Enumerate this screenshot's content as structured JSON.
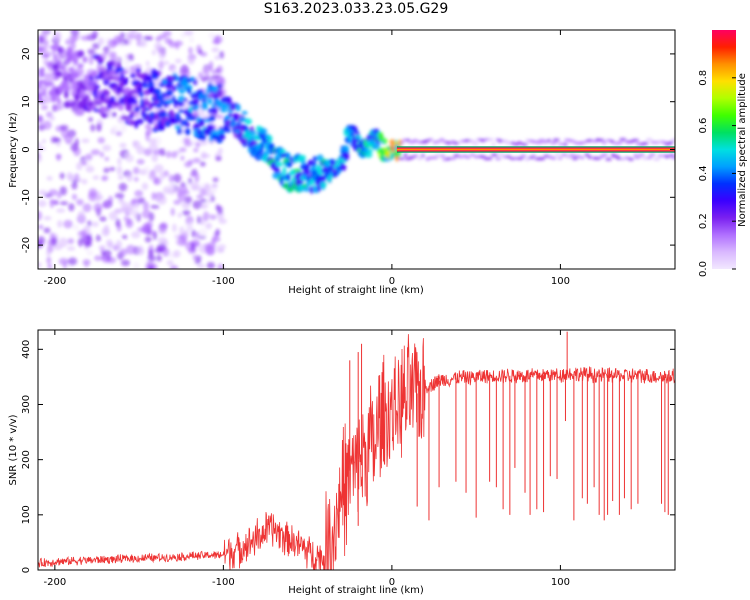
{
  "page": {
    "title": "S163.2023.033.23.05.G29"
  },
  "chart_data": [
    {
      "type": "heatmap",
      "title": "S163.2023.033.23.05.G29",
      "xlabel": "Height of straight line (km)",
      "ylabel": "Frequency (Hz)",
      "xlim": [
        -210,
        168
      ],
      "ylim": [
        -25,
        25
      ],
      "x_ticks": [
        -200,
        -100,
        0,
        100
      ],
      "y_ticks": [
        20,
        10,
        0,
        -10,
        -20
      ],
      "grid": false,
      "colorbar": {
        "label": "Normalized spectral amplitude",
        "range": [
          0,
          1
        ],
        "ticks": [
          0.0,
          0.2,
          0.4,
          0.6,
          0.8
        ],
        "colors": [
          "#f2e8ff",
          "#d9b8ff",
          "#b070ff",
          "#7a20f0",
          "#3a00ff",
          "#0030ff",
          "#00a0ff",
          "#00e0e0",
          "#00e060",
          "#40ff00",
          "#b0ff00",
          "#ffe000",
          "#ff9000",
          "#ff2000",
          "#ff0060"
        ]
      },
      "ridge": {
        "description_x": [
          -205,
          -180,
          -160,
          -140,
          -120,
          -110,
          -100,
          -90,
          -80,
          -70,
          -60,
          -50,
          -40,
          -30,
          -25,
          -20,
          -15,
          -10,
          -5,
          0,
          20,
          50,
          100,
          168
        ],
        "frequency": [
          16,
          14,
          12,
          10,
          9,
          8,
          8,
          5,
          2,
          -2,
          -5,
          -5,
          -5,
          -3,
          4,
          1,
          0,
          3,
          0,
          0,
          0,
          0,
          0,
          0
        ],
        "amplitude": [
          0.15,
          0.25,
          0.3,
          0.35,
          0.45,
          0.45,
          0.4,
          0.4,
          0.5,
          0.5,
          0.55,
          0.5,
          0.5,
          0.45,
          0.5,
          0.55,
          0.6,
          0.55,
          0.7,
          0.9,
          0.95,
          0.95,
          0.95,
          0.95
        ]
      }
    },
    {
      "type": "line",
      "xlabel": "Height of straight line (km)",
      "ylabel": "SNR (10 * v/v)",
      "xlim": [
        -210,
        168
      ],
      "ylim": [
        0,
        435
      ],
      "x_ticks": [
        -200,
        -100,
        0,
        100
      ],
      "y_ticks": [
        0,
        100,
        200,
        300,
        400
      ],
      "grid": false,
      "series": [
        {
          "color": "#ee3333",
          "x": [
            -210,
            -200,
            -180,
            -160,
            -140,
            -120,
            -100,
            -90,
            -80,
            -75,
            -70,
            -65,
            -60,
            -55,
            -50,
            -45,
            -40,
            -38,
            -35,
            -32,
            -30,
            -28,
            -25,
            -22,
            -20,
            -18,
            -15,
            -12,
            -10,
            -8,
            -5,
            -2,
            0,
            5,
            10,
            15,
            20,
            25,
            30,
            40,
            50,
            60,
            80,
            100,
            104,
            110,
            130,
            150,
            168
          ],
          "y": [
            12,
            15,
            18,
            20,
            22,
            25,
            28,
            40,
            60,
            70,
            75,
            65,
            55,
            45,
            35,
            25,
            20,
            30,
            60,
            110,
            140,
            150,
            180,
            170,
            200,
            190,
            210,
            230,
            220,
            260,
            270,
            280,
            290,
            300,
            310,
            320,
            330,
            340,
            345,
            348,
            350,
            352,
            352,
            354,
            356,
            355,
            353,
            352,
            350
          ]
        }
      ],
      "spikes_up": [
        {
          "x": -25,
          "y": 380
        },
        {
          "x": -20,
          "y": 395
        },
        {
          "x": -18,
          "y": 410
        },
        {
          "x": 104,
          "y": 432
        }
      ],
      "dropouts": [
        {
          "x": -20,
          "y": 80
        },
        {
          "x": 15,
          "y": 115
        },
        {
          "x": 22,
          "y": 90
        },
        {
          "x": 28,
          "y": 150
        },
        {
          "x": 38,
          "y": 160
        },
        {
          "x": 44,
          "y": 140
        },
        {
          "x": 50,
          "y": 95
        },
        {
          "x": 58,
          "y": 160
        },
        {
          "x": 62,
          "y": 150
        },
        {
          "x": 66,
          "y": 110
        },
        {
          "x": 70,
          "y": 100
        },
        {
          "x": 73,
          "y": 185
        },
        {
          "x": 79,
          "y": 140
        },
        {
          "x": 82,
          "y": 100
        },
        {
          "x": 86,
          "y": 110
        },
        {
          "x": 90,
          "y": 105
        },
        {
          "x": 94,
          "y": 170
        },
        {
          "x": 98,
          "y": 165
        },
        {
          "x": 103,
          "y": 270
        },
        {
          "x": 108,
          "y": 90
        },
        {
          "x": 113,
          "y": 130
        },
        {
          "x": 116,
          "y": 120
        },
        {
          "x": 120,
          "y": 150
        },
        {
          "x": 123,
          "y": 100
        },
        {
          "x": 126,
          "y": 90
        },
        {
          "x": 128,
          "y": 100
        },
        {
          "x": 131,
          "y": 125
        },
        {
          "x": 135,
          "y": 100
        },
        {
          "x": 138,
          "y": 130
        },
        {
          "x": 142,
          "y": 110
        },
        {
          "x": 146,
          "y": 120
        },
        {
          "x": 160,
          "y": 120
        },
        {
          "x": 162,
          "y": 105
        },
        {
          "x": 164,
          "y": 100
        }
      ]
    }
  ]
}
